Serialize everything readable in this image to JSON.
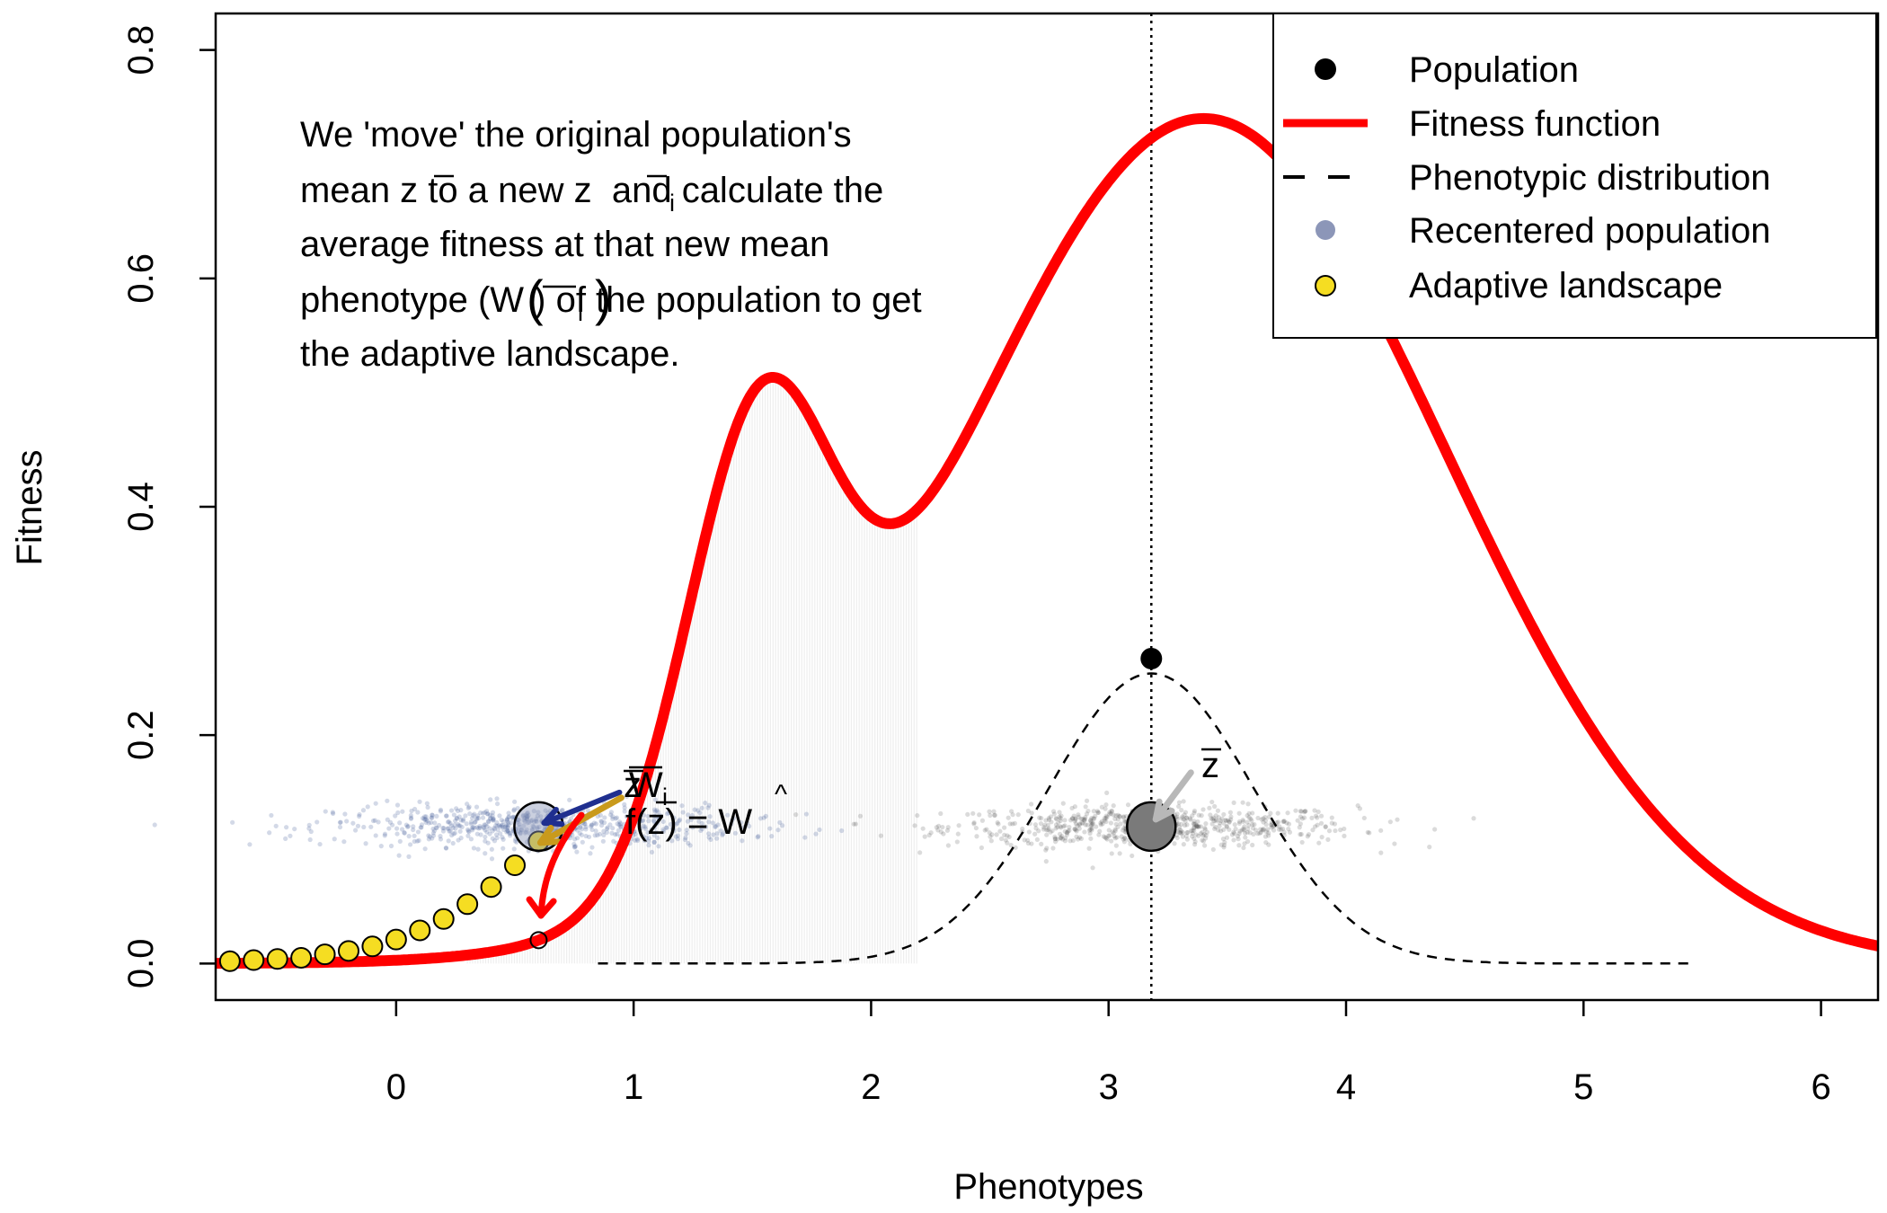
{
  "chart_data": {
    "type": "line",
    "xlabel": "Phenotypes",
    "ylabel": "Fitness",
    "xlim": [
      -0.76,
      6.24
    ],
    "ylim": [
      -0.032,
      0.832
    ],
    "xticks": [
      0,
      1,
      2,
      3,
      4,
      5,
      6
    ],
    "yticks": [
      0.0,
      0.2,
      0.4,
      0.6,
      0.8
    ],
    "xtick_labels": [
      "0",
      "1",
      "2",
      "3",
      "4",
      "5",
      "6"
    ],
    "ytick_labels": [
      "0.0",
      "0.2",
      "0.4",
      "0.6",
      "0.8"
    ],
    "legend": {
      "position": "top-right",
      "entries": [
        {
          "label": "Population",
          "symbol": "dot",
          "color": "#000000"
        },
        {
          "label": "Fitness function",
          "symbol": "line",
          "color": "#ff0000"
        },
        {
          "label": "Phenotypic distribution",
          "symbol": "dash",
          "color": "#000000"
        },
        {
          "label": "Recentered population",
          "symbol": "dot",
          "color": "#8c96b8"
        },
        {
          "label": "Adaptive landscape",
          "symbol": "yellow-dot",
          "color": "#f5dd22"
        }
      ]
    },
    "fitness_function": {
      "color": "#ff0000",
      "components": [
        {
          "weight": 0.37,
          "mean": 1.52,
          "sd": 0.3
        },
        {
          "weight": 0.74,
          "mean": 3.4,
          "sd": 1.02
        }
      ]
    },
    "phenotypic_distribution": {
      "mean": 3.18,
      "sd": 0.43,
      "peak": 0.254,
      "x_range": [
        0.85,
        5.45
      ]
    },
    "population_mean": {
      "x": 3.18,
      "fitness": 0.267,
      "y_jitter_level": 0.12
    },
    "recentered_population_mean": {
      "x": 0.6,
      "y_jitter_level": 0.12
    },
    "adaptive_landscape": {
      "x": [
        -0.7,
        -0.6,
        -0.5,
        -0.4,
        -0.3,
        -0.2,
        -0.1,
        0.0,
        0.1,
        0.2,
        0.3,
        0.4,
        0.5,
        0.6
      ],
      "y": [
        0.002,
        0.003,
        0.004,
        0.005,
        0.008,
        0.011,
        0.015,
        0.021,
        0.029,
        0.039,
        0.052,
        0.067,
        0.086,
        0.107
      ]
    },
    "reference_line_x": 3.18,
    "annotation_lines": [
      "We 'move' the original population's",
      "mean z to a new z  and calculate the",
      "average fitness at that new mean",
      "phenotype (W ) of the population to get",
      "the adaptive landscape."
    ],
    "point_labels": {
      "z_bar": "z",
      "f_of_z": "f(z) = W",
      "W_i": "W",
      "z_i": "z",
      "subscript_i": "i"
    }
  }
}
